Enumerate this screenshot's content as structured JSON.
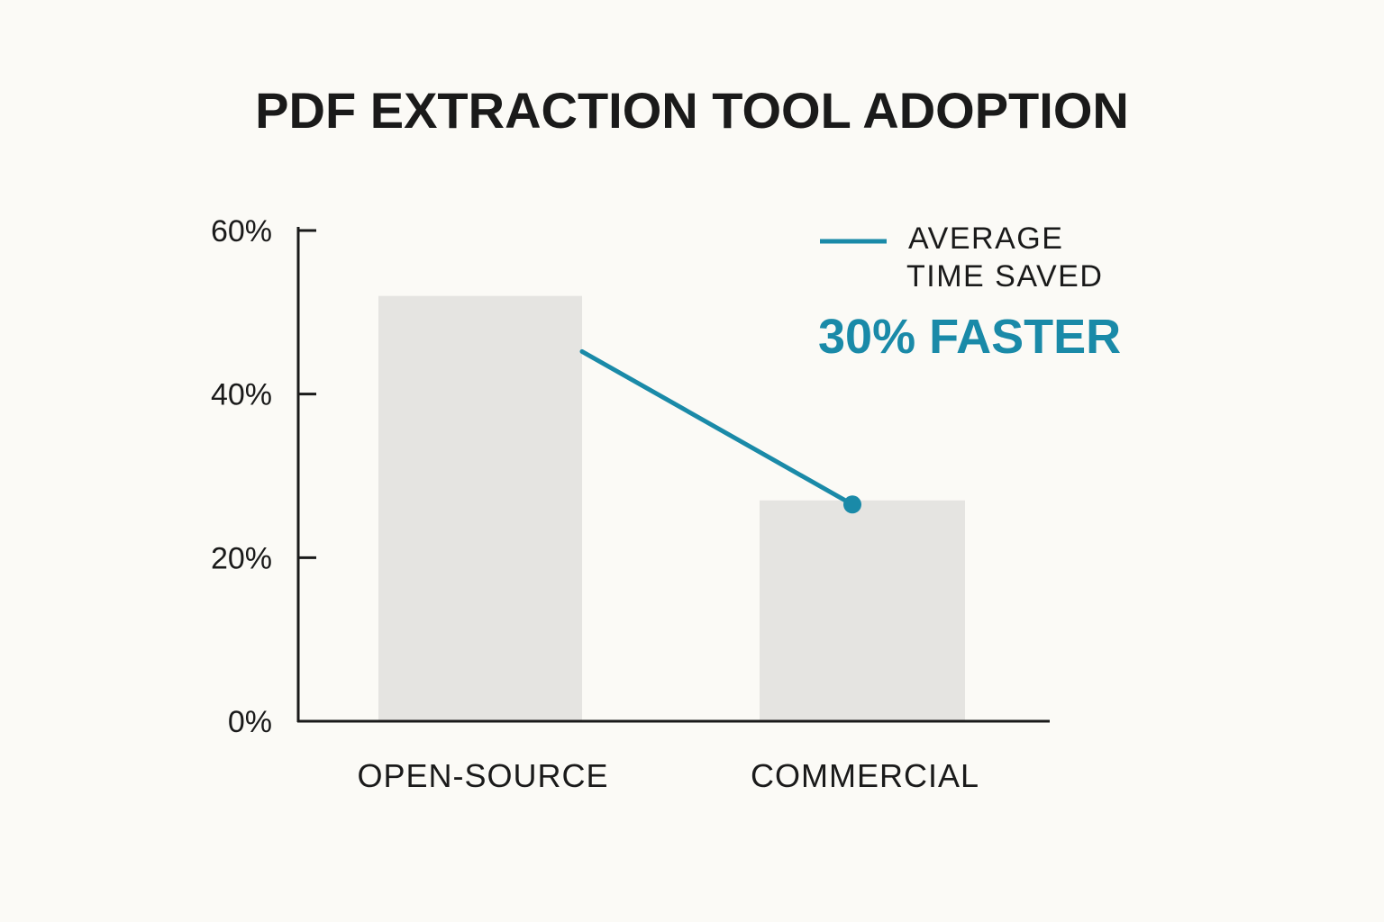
{
  "chart_data": {
    "type": "bar",
    "title": "PDF EXTRACTION TOOL ADOPTION",
    "categories": [
      "OPEN-SOURCE",
      "COMMERCIAL"
    ],
    "values": [
      52,
      27
    ],
    "ylim": [
      0,
      60
    ],
    "y_ticks": [
      0,
      20,
      40,
      60
    ],
    "y_tick_labels": [
      "0%",
      "20%",
      "40%",
      "60%"
    ],
    "grid": false,
    "legend_placement": "top-right",
    "legend": {
      "line1": "AVERAGE",
      "line2": "TIME SAVED"
    },
    "callout": "30% FASTER",
    "line_series": {
      "values": [
        43,
        26.5
      ]
    },
    "colors": {
      "bar": "#e5e4e1",
      "accent": "#1a8aa8",
      "axis": "#1a1a1a",
      "text": "#1a1a1a",
      "background": "#fbfaf6"
    }
  }
}
